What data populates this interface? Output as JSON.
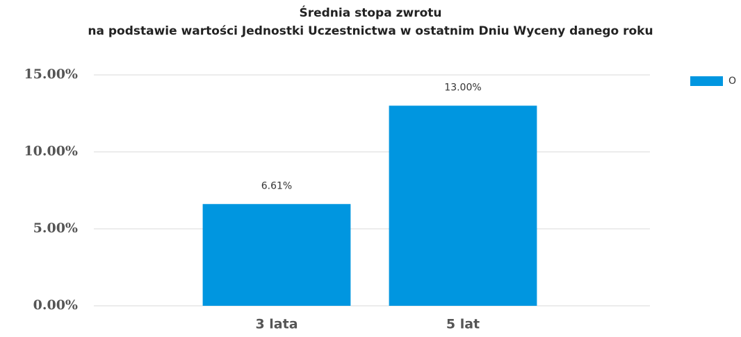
{
  "chart_data": {
    "type": "bar",
    "title": "Średnia stopa zwrotu",
    "subtitle": "na podstawie wartości Jednostki Uczestnictwa w ostatnim Dniu Wyceny danego roku",
    "categories": [
      "3 lata",
      "5 lat"
    ],
    "series": [
      {
        "name": "O",
        "color": "#0096e0",
        "values": [
          6.61,
          13.0
        ],
        "value_labels": [
          "6.61%",
          "13.00%"
        ]
      }
    ],
    "ylim": [
      0,
      15
    ],
    "yticks": [
      {
        "value": 0,
        "label": "0.00%"
      },
      {
        "value": 5,
        "label": "5.00%"
      },
      {
        "value": 10,
        "label": "10.00%"
      },
      {
        "value": 15,
        "label": "15.00%"
      }
    ],
    "grid": true,
    "legend": "top-right"
  }
}
